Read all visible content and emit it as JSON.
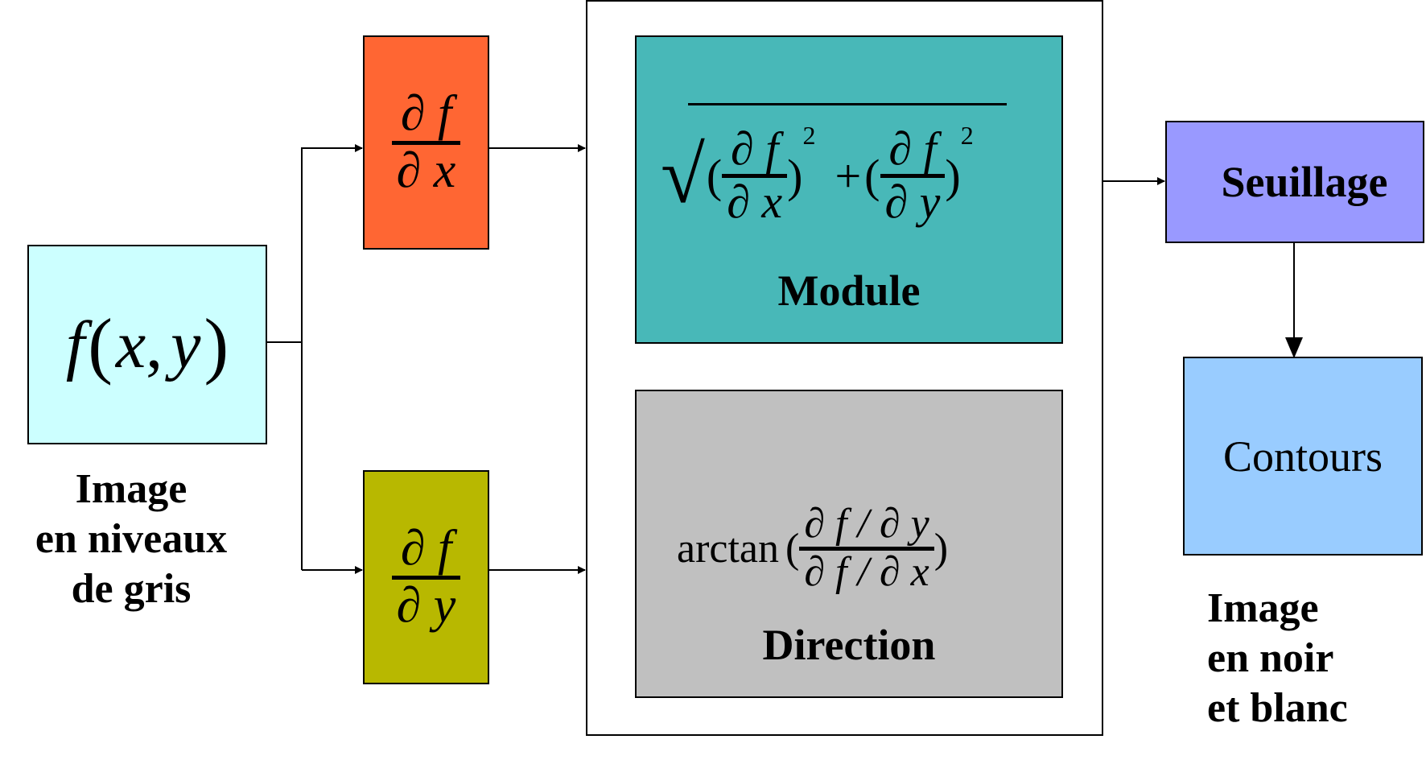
{
  "input": {
    "function": "f",
    "open_paren": "(",
    "x": "x",
    "comma": ",",
    "y": "y",
    "close_paren": ")",
    "caption_lines": [
      "Image",
      "en niveaux",
      "de gris"
    ],
    "fill": "#ccffff"
  },
  "derivative_x": {
    "numerator": "∂ f",
    "denominator": "∂ x",
    "fill": "#ff6633"
  },
  "derivative_y": {
    "numerator": "∂ f",
    "denominator": "∂ y",
    "fill": "#b8b800"
  },
  "module": {
    "sqrt_sign": "√",
    "open1": "(",
    "frac1_numerator": "∂ f",
    "frac1_denominator": "∂ x",
    "close1": ")",
    "exp1": "2",
    "plus": "+",
    "open2": "(",
    "frac2_numerator": "∂ f",
    "frac2_denominator": "∂ y",
    "close2": ")",
    "exp2": "2",
    "label": "Module",
    "fill": "#48b8b8"
  },
  "direction": {
    "function": "arctan",
    "open": "(",
    "numerator": "∂ f / ∂ y",
    "denominator": "∂ f / ∂ x",
    "close": ")",
    "label": "Direction",
    "fill": "#c0c0c0"
  },
  "threshold": {
    "label": "Seuillage",
    "fill": "#9999ff"
  },
  "contours": {
    "label": "Contours",
    "fill": "#99ccff"
  },
  "output_caption_lines": [
    "Image",
    "en noir",
    "et blanc"
  ]
}
